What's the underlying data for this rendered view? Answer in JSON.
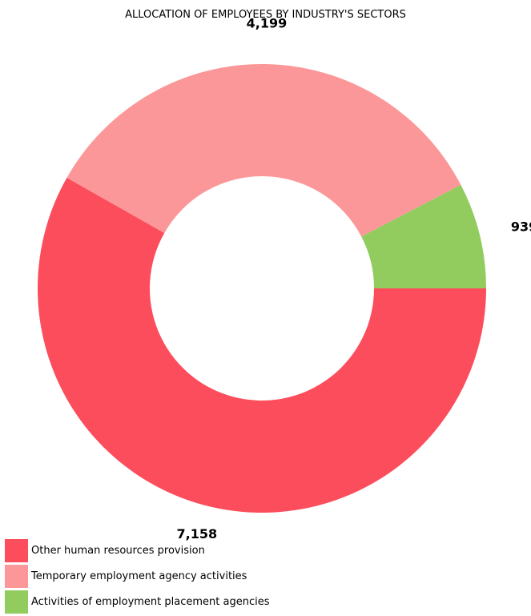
{
  "chart_data": {
    "type": "pie",
    "title": "ALLOCATION OF EMPLOYEES BY INDUSTRY'S SECTORS",
    "donut": true,
    "legend_position": "bottom-left",
    "categories": [
      "Other human resources provision",
      "Temporary employment agency activities",
      "Activities of employment placement agencies"
    ],
    "values": [
      7158,
      4199,
      939
    ],
    "value_labels": [
      "7,158",
      "4,199",
      "939"
    ],
    "colors": [
      "#fc4d5c",
      "#fc9799",
      "#92cc5f"
    ]
  }
}
